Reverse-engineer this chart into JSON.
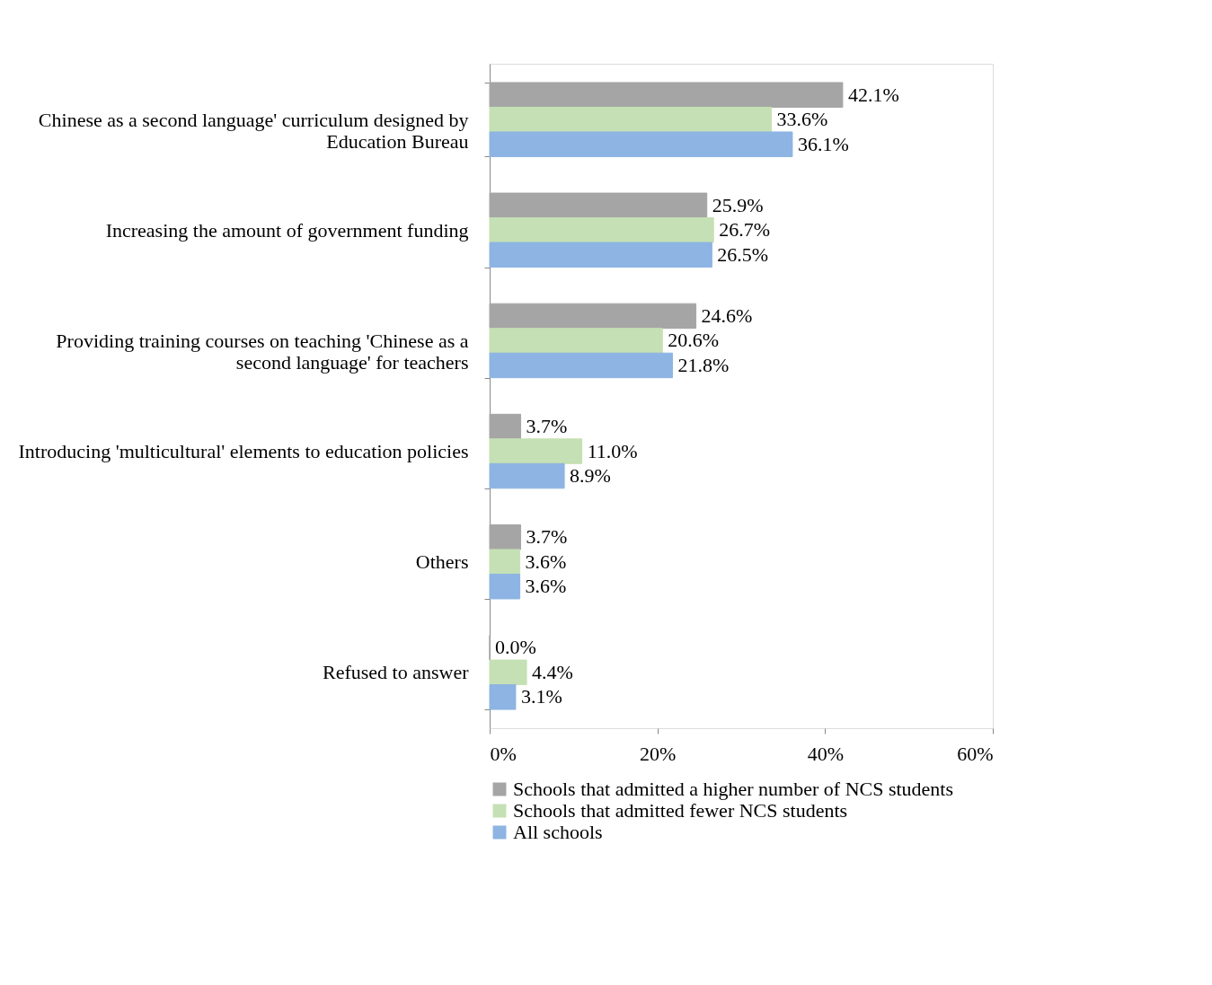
{
  "chart_data": {
    "type": "bar",
    "orientation": "horizontal",
    "categories": [
      "Chinese as a second language' curriculum designed by Education Bureau",
      "Increasing the amount of government funding",
      "Providing training courses on teaching 'Chinese as a second language' for teachers",
      "Introducing 'multicultural' elements to education policies",
      "Others",
      "Refused to answer"
    ],
    "series": [
      {
        "name": "Schools that admitted a higher number of NCS students",
        "color": "#a5a5a5",
        "values": [
          42.1,
          25.9,
          24.6,
          3.7,
          3.7,
          0.0
        ],
        "value_labels": [
          "42.1%",
          "25.9%",
          "24.6%",
          "3.7%",
          "3.7%",
          "0.0%"
        ]
      },
      {
        "name": "Schools that admitted fewer NCS students",
        "color": "#c5e0b4",
        "values": [
          33.6,
          26.7,
          20.6,
          11.0,
          3.6,
          4.4
        ],
        "value_labels": [
          "33.6%",
          "26.7%",
          "20.6%",
          "11.0%",
          "3.6%",
          "4.4%"
        ]
      },
      {
        "name": "All schools",
        "color": "#8db4e2",
        "values": [
          36.1,
          26.5,
          21.8,
          8.9,
          3.6,
          3.1
        ],
        "value_labels": [
          "36.1%",
          "26.5%",
          "21.8%",
          "8.9%",
          "3.6%",
          "3.1%"
        ]
      }
    ],
    "xlim": [
      0,
      60
    ],
    "xticks": [
      {
        "value": 0,
        "label": "0%"
      },
      {
        "value": 20,
        "label": "20%"
      },
      {
        "value": 40,
        "label": "40%"
      },
      {
        "value": 60,
        "label": "60%"
      }
    ],
    "grid": false,
    "legend": "bottom"
  }
}
